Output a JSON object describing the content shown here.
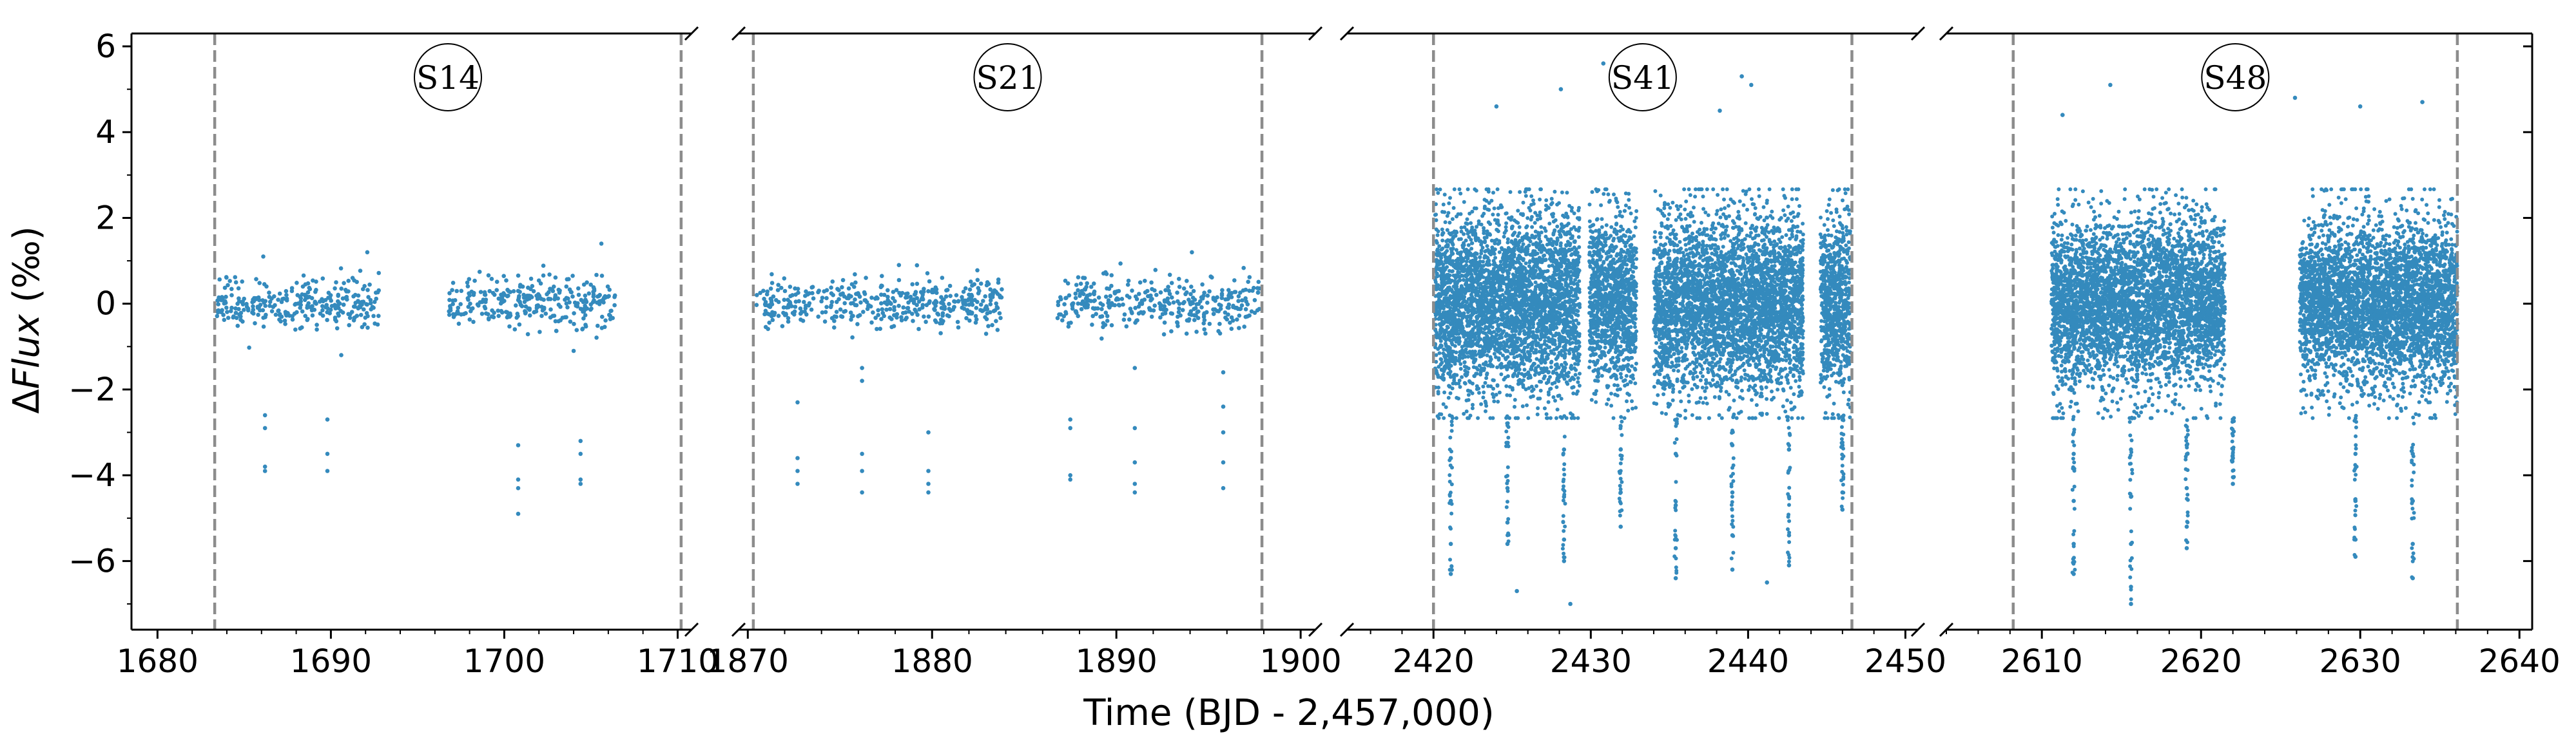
{
  "chart_data": {
    "type": "scatter",
    "title": "",
    "xlabel": "Time (BJD - 2,457,000)",
    "ylabel_prefix": "Δ",
    "ylabel_var": "Flux",
    "ylabel_unit": " (‰)",
    "ylim": [
      -7.6,
      6.3
    ],
    "y_ticks": [
      6,
      4,
      2,
      0,
      -2,
      -4,
      -6
    ],
    "y_tick_labels": [
      "6",
      "4",
      "2",
      "0",
      "−2",
      "−4",
      "−6"
    ],
    "grid": false,
    "broken_x_axis": true,
    "point_color": "#348abd",
    "boundary_line_color": "#8c8c8c",
    "panels": [
      {
        "sector": "S14",
        "xlim": [
          1678.5,
          1710.8
        ],
        "x_ticks": [
          1680,
          1690,
          1700,
          1710
        ],
        "sector_start": 1683.3,
        "sector_end": 1710.2,
        "segments": [
          [
            1683.4,
            1692.8
          ],
          [
            1696.8,
            1706.4
          ]
        ],
        "scatter_sigma": 0.3,
        "transits": [
          {
            "x": 1686.2,
            "depths": [
              -2.6,
              -2.9,
              -3.8,
              -3.9
            ]
          },
          {
            "x": 1689.8,
            "depths": [
              -2.7,
              -3.5,
              -3.9
            ]
          },
          {
            "x": 1700.8,
            "depths": [
              -3.3,
              -4.1,
              -4.3,
              -4.9
            ]
          },
          {
            "x": 1704.4,
            "depths": [
              -3.2,
              -3.5,
              -4.1,
              -4.2
            ]
          }
        ],
        "outliers": [
          [
            1686.1,
            1.1
          ],
          [
            1692.1,
            1.2
          ],
          [
            1705.6,
            1.4
          ],
          [
            1690.6,
            -1.2
          ],
          [
            1704.0,
            -1.1
          ]
        ]
      },
      {
        "sector": "S21",
        "xlim": [
          1869.5,
          1900.8
        ],
        "x_ticks": [
          1870,
          1880,
          1890,
          1900
        ],
        "sector_start": 1870.3,
        "sector_end": 1897.9,
        "segments": [
          [
            1870.4,
            1883.8
          ],
          [
            1886.8,
            1897.8
          ]
        ],
        "scatter_sigma": 0.3,
        "transits": [
          {
            "x": 1872.7,
            "depths": [
              -2.3,
              -3.6,
              -3.9,
              -4.2
            ]
          },
          {
            "x": 1876.2,
            "depths": [
              -1.5,
              -1.8,
              -3.5,
              -3.9,
              -4.4
            ]
          },
          {
            "x": 1879.8,
            "depths": [
              -3.0,
              -3.9,
              -4.2,
              -4.4
            ]
          },
          {
            "x": 1887.5,
            "depths": [
              -2.7,
              -2.9,
              -4.0,
              -4.1
            ]
          },
          {
            "x": 1891.0,
            "depths": [
              -1.5,
              -2.9,
              -3.7,
              -4.2,
              -4.4
            ]
          },
          {
            "x": 1895.8,
            "depths": [
              -1.6,
              -2.4,
              -3.0,
              -3.7,
              -4.3
            ]
          }
        ],
        "outliers": [
          [
            1894.1,
            1.2
          ],
          [
            1878.2,
            0.9
          ]
        ]
      },
      {
        "sector": "S41",
        "xlim": [
          2414.5,
          2450.8
        ],
        "x_ticks": [
          2420,
          2430,
          2440,
          2450
        ],
        "sector_start": 2420.0,
        "sector_end": 2446.6,
        "segments": [
          [
            2420.1,
            2429.3
          ],
          [
            2429.9,
            2432.9
          ],
          [
            2434.0,
            2443.5
          ],
          [
            2444.6,
            2446.5
          ]
        ],
        "scatter_sigma": 1.15,
        "transits": [
          {
            "x": 2421.1,
            "depths": [
              -3.6,
              -4.6,
              -5.6,
              -6.3
            ]
          },
          {
            "x": 2424.7,
            "depths": [
              -3.3,
              -4.3,
              -5.1,
              -5.6
            ]
          },
          {
            "x": 2428.3,
            "depths": [
              -3.4,
              -4.5,
              -5.5,
              -6.0
            ]
          },
          {
            "x": 2431.9,
            "depths": [
              -3.4,
              -4.4,
              -5.2
            ]
          },
          {
            "x": 2435.4,
            "depths": [
              -3.5,
              -4.7,
              -5.7,
              -6.4
            ]
          },
          {
            "x": 2439.0,
            "depths": [
              -3.3,
              -4.4,
              -5.4,
              -6.2
            ]
          },
          {
            "x": 2442.6,
            "depths": [
              -3.4,
              -4.5,
              -5.4,
              -6.1
            ]
          },
          {
            "x": 2446.0,
            "depths": [
              -3.3,
              -4.4,
              -4.8
            ]
          }
        ],
        "outliers": [
          [
            2430.8,
            5.6
          ],
          [
            2439.6,
            5.3
          ],
          [
            2440.2,
            5.1
          ],
          [
            2428.1,
            5.0
          ],
          [
            2424.0,
            4.6
          ],
          [
            2438.2,
            4.5
          ],
          [
            2425.3,
            -6.7
          ],
          [
            2428.7,
            -7.0
          ],
          [
            2441.2,
            -6.5
          ]
        ]
      },
      {
        "sector": "S48",
        "xlim": [
          2604.0,
          2640.8
        ],
        "x_ticks": [
          2610,
          2620,
          2630,
          2640
        ],
        "sector_start": 2608.2,
        "sector_end": 2636.1,
        "segments": [
          [
            2610.6,
            2621.5
          ],
          [
            2626.2,
            2636.1
          ]
        ],
        "scatter_sigma": 1.05,
        "transits": [
          {
            "x": 2612.0,
            "depths": [
              -3.5,
              -4.6,
              -5.6,
              -6.3
            ]
          },
          {
            "x": 2615.6,
            "depths": [
              -3.4,
              -4.5,
              -5.6,
              -6.6,
              -7.0
            ]
          },
          {
            "x": 2619.1,
            "depths": [
              -3.3,
              -4.3,
              -5.2,
              -5.7
            ]
          },
          {
            "x": 2622.0,
            "depths": [
              -3.6,
              -4.2
            ]
          },
          {
            "x": 2629.7,
            "depths": [
              -3.5,
              -4.6,
              -5.5,
              -5.9
            ]
          },
          {
            "x": 2633.3,
            "depths": [
              -3.5,
              -4.6,
              -5.6,
              -6.4
            ]
          }
        ],
        "outliers": [
          [
            2614.3,
            5.1
          ],
          [
            2625.9,
            4.8
          ],
          [
            2630.0,
            4.6
          ],
          [
            2633.9,
            4.7
          ],
          [
            2611.3,
            4.4
          ]
        ]
      }
    ]
  }
}
